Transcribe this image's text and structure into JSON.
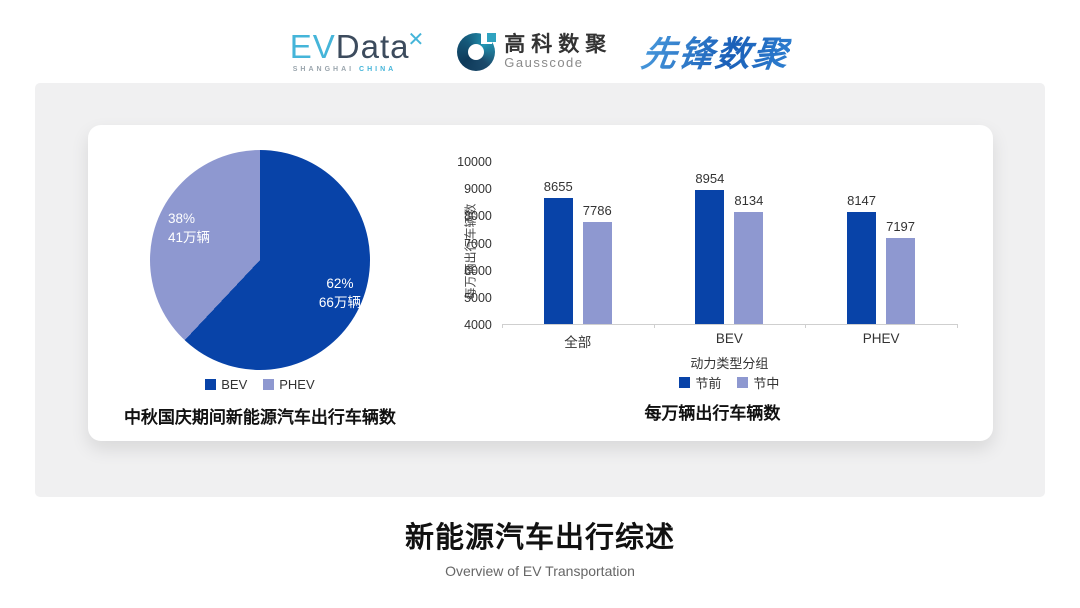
{
  "header": {
    "evdata": {
      "ev": "EV",
      "data": "Data",
      "mark": "✕",
      "sub_left": "SHANGHAI",
      "sub_right": "CHINA"
    },
    "gausscode": {
      "cn": "高科数聚",
      "en": "Gausscode"
    },
    "xianfeng": {
      "text": "先锋数聚"
    }
  },
  "footer": {
    "title": "新能源汽车出行综述",
    "subtitle": "Overview of EV Transportation"
  },
  "colors": {
    "primary_dark": "#0843a8",
    "primary_light": "#8e98d0",
    "panel_bg": "#f0f0f1"
  },
  "chart_data": [
    {
      "type": "pie",
      "title": "中秋国庆期间新能源汽车出行车辆数",
      "start_angle": "12-oclock",
      "direction": "clockwise",
      "slices": [
        {
          "label": "BEV",
          "percent": 62,
          "pct_label": "62%",
          "value_label": "66万辆",
          "color": "#0843a8"
        },
        {
          "label": "PHEV",
          "percent": 38,
          "pct_label": "38%",
          "value_label": "41万辆",
          "color": "#8e98d0"
        }
      ],
      "legend_position": "bottom"
    },
    {
      "type": "bar",
      "title": "每万辆出行车辆数",
      "categories": [
        "全部",
        "BEV",
        "PHEV"
      ],
      "series": [
        {
          "name": "节前",
          "color": "#0843a8",
          "values": [
            8655,
            8954,
            8147
          ]
        },
        {
          "name": "节中",
          "color": "#8e98d0",
          "values": [
            7786,
            8134,
            7197
          ]
        }
      ],
      "xlabel": "动力类型分组",
      "ylabel": "每万辆出行车辆数",
      "ylim": [
        4000,
        10000
      ],
      "ytick_step": 1000,
      "grid": false,
      "legend_position": "bottom"
    }
  ]
}
